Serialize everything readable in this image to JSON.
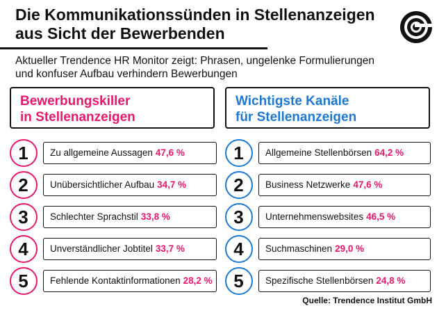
{
  "title_line1": "Die Kommunikationssünden in Stellenanzeigen",
  "title_line2": "aus Sicht der Bewerbenden",
  "subtitle_line1": "Aktueller Trendence HR Monitor zeigt: Phrasen, ungelenke Formulierungen",
  "subtitle_line2": "und konfuser Aufbau verhindern Bewerbungen",
  "logo": "concentric-spiral-logo",
  "colors": {
    "pink": "#e6186e",
    "blue": "#1e78d2",
    "text": "#111111"
  },
  "source": "Quelle: Trendence Institut GmbH",
  "chart_data": [
    {
      "type": "table",
      "title_line1": "Bewerbungskiller",
      "title_line2": "in Stellenanzeigen",
      "accent": "#e6186e",
      "rows": [
        {
          "rank": "1",
          "label": "Zu allgemeine Aussagen",
          "value": "47,6 %"
        },
        {
          "rank": "2",
          "label": "Unübersichtlicher Aufbau",
          "value": "34,7 %"
        },
        {
          "rank": "3",
          "label": "Schlechter Sprachstil",
          "value": "33,8 %"
        },
        {
          "rank": "4",
          "label": "Unverständlicher Jobtitel",
          "value": "33,7 %"
        },
        {
          "rank": "5",
          "label": "Fehlende Kontaktinformationen",
          "value": "28,2 %"
        }
      ]
    },
    {
      "type": "table",
      "title_line1": "Wichtigste Kanäle",
      "title_line2": "für Stellenanzeigen",
      "accent": "#1e78d2",
      "rows": [
        {
          "rank": "1",
          "label": "Allgemeine Stellenbörsen",
          "value": "64,2 %"
        },
        {
          "rank": "2",
          "label": "Business Netzwerke",
          "value": "47,6 %"
        },
        {
          "rank": "3",
          "label": "Unternehmenswebsites",
          "value": "46,5 %"
        },
        {
          "rank": "4",
          "label": "Suchmaschinen",
          "value": "29,0 %"
        },
        {
          "rank": "5",
          "label": "Spezifische Stellenbörsen",
          "value": "24,8 %"
        }
      ]
    }
  ]
}
